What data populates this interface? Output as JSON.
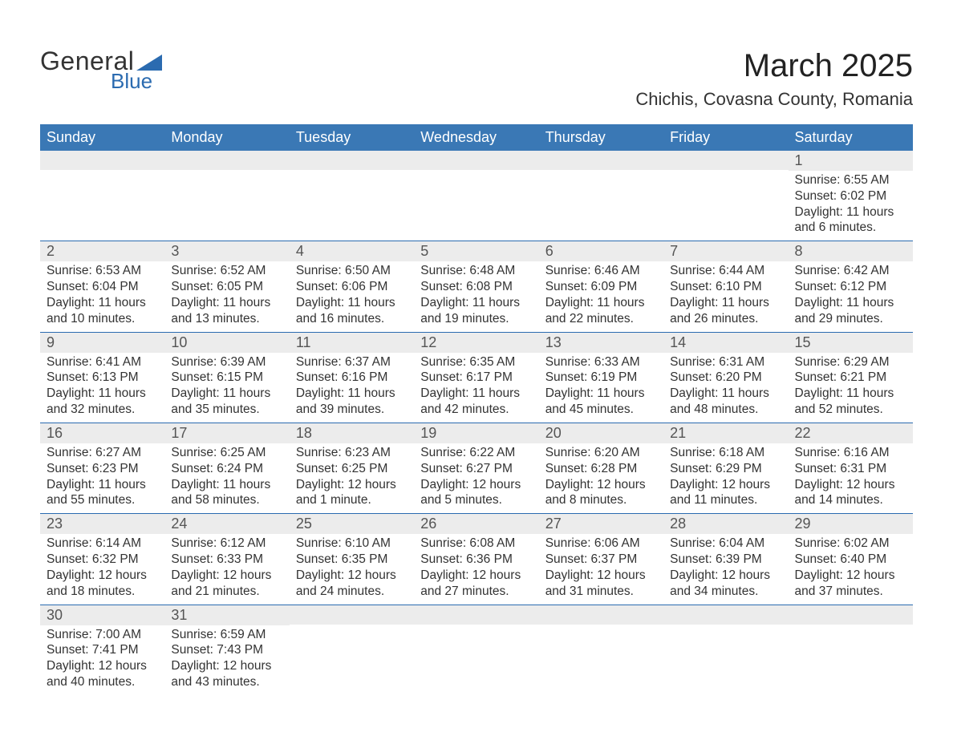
{
  "logo": {
    "text1": "General",
    "text2": "Blue",
    "shape_color": "#2b6bb0",
    "text1_color": "#333333",
    "text2_color": "#2b6bb0"
  },
  "title": {
    "month": "March 2025",
    "location": "Chichis, Covasna County, Romania"
  },
  "header_bg": "#3a78b5",
  "header_fg": "#ffffff",
  "row_sep_color": "#2b6bb0",
  "daynum_bg": "#ececec",
  "day_names": [
    "Sunday",
    "Monday",
    "Tuesday",
    "Wednesday",
    "Thursday",
    "Friday",
    "Saturday"
  ],
  "weeks": [
    [
      null,
      null,
      null,
      null,
      null,
      null,
      {
        "n": "1",
        "sr": "Sunrise: 6:55 AM",
        "ss": "Sunset: 6:02 PM",
        "d1": "Daylight: 11 hours",
        "d2": "and 6 minutes."
      }
    ],
    [
      {
        "n": "2",
        "sr": "Sunrise: 6:53 AM",
        "ss": "Sunset: 6:04 PM",
        "d1": "Daylight: 11 hours",
        "d2": "and 10 minutes."
      },
      {
        "n": "3",
        "sr": "Sunrise: 6:52 AM",
        "ss": "Sunset: 6:05 PM",
        "d1": "Daylight: 11 hours",
        "d2": "and 13 minutes."
      },
      {
        "n": "4",
        "sr": "Sunrise: 6:50 AM",
        "ss": "Sunset: 6:06 PM",
        "d1": "Daylight: 11 hours",
        "d2": "and 16 minutes."
      },
      {
        "n": "5",
        "sr": "Sunrise: 6:48 AM",
        "ss": "Sunset: 6:08 PM",
        "d1": "Daylight: 11 hours",
        "d2": "and 19 minutes."
      },
      {
        "n": "6",
        "sr": "Sunrise: 6:46 AM",
        "ss": "Sunset: 6:09 PM",
        "d1": "Daylight: 11 hours",
        "d2": "and 22 minutes."
      },
      {
        "n": "7",
        "sr": "Sunrise: 6:44 AM",
        "ss": "Sunset: 6:10 PM",
        "d1": "Daylight: 11 hours",
        "d2": "and 26 minutes."
      },
      {
        "n": "8",
        "sr": "Sunrise: 6:42 AM",
        "ss": "Sunset: 6:12 PM",
        "d1": "Daylight: 11 hours",
        "d2": "and 29 minutes."
      }
    ],
    [
      {
        "n": "9",
        "sr": "Sunrise: 6:41 AM",
        "ss": "Sunset: 6:13 PM",
        "d1": "Daylight: 11 hours",
        "d2": "and 32 minutes."
      },
      {
        "n": "10",
        "sr": "Sunrise: 6:39 AM",
        "ss": "Sunset: 6:15 PM",
        "d1": "Daylight: 11 hours",
        "d2": "and 35 minutes."
      },
      {
        "n": "11",
        "sr": "Sunrise: 6:37 AM",
        "ss": "Sunset: 6:16 PM",
        "d1": "Daylight: 11 hours",
        "d2": "and 39 minutes."
      },
      {
        "n": "12",
        "sr": "Sunrise: 6:35 AM",
        "ss": "Sunset: 6:17 PM",
        "d1": "Daylight: 11 hours",
        "d2": "and 42 minutes."
      },
      {
        "n": "13",
        "sr": "Sunrise: 6:33 AM",
        "ss": "Sunset: 6:19 PM",
        "d1": "Daylight: 11 hours",
        "d2": "and 45 minutes."
      },
      {
        "n": "14",
        "sr": "Sunrise: 6:31 AM",
        "ss": "Sunset: 6:20 PM",
        "d1": "Daylight: 11 hours",
        "d2": "and 48 minutes."
      },
      {
        "n": "15",
        "sr": "Sunrise: 6:29 AM",
        "ss": "Sunset: 6:21 PM",
        "d1": "Daylight: 11 hours",
        "d2": "and 52 minutes."
      }
    ],
    [
      {
        "n": "16",
        "sr": "Sunrise: 6:27 AM",
        "ss": "Sunset: 6:23 PM",
        "d1": "Daylight: 11 hours",
        "d2": "and 55 minutes."
      },
      {
        "n": "17",
        "sr": "Sunrise: 6:25 AM",
        "ss": "Sunset: 6:24 PM",
        "d1": "Daylight: 11 hours",
        "d2": "and 58 minutes."
      },
      {
        "n": "18",
        "sr": "Sunrise: 6:23 AM",
        "ss": "Sunset: 6:25 PM",
        "d1": "Daylight: 12 hours",
        "d2": "and 1 minute."
      },
      {
        "n": "19",
        "sr": "Sunrise: 6:22 AM",
        "ss": "Sunset: 6:27 PM",
        "d1": "Daylight: 12 hours",
        "d2": "and 5 minutes."
      },
      {
        "n": "20",
        "sr": "Sunrise: 6:20 AM",
        "ss": "Sunset: 6:28 PM",
        "d1": "Daylight: 12 hours",
        "d2": "and 8 minutes."
      },
      {
        "n": "21",
        "sr": "Sunrise: 6:18 AM",
        "ss": "Sunset: 6:29 PM",
        "d1": "Daylight: 12 hours",
        "d2": "and 11 minutes."
      },
      {
        "n": "22",
        "sr": "Sunrise: 6:16 AM",
        "ss": "Sunset: 6:31 PM",
        "d1": "Daylight: 12 hours",
        "d2": "and 14 minutes."
      }
    ],
    [
      {
        "n": "23",
        "sr": "Sunrise: 6:14 AM",
        "ss": "Sunset: 6:32 PM",
        "d1": "Daylight: 12 hours",
        "d2": "and 18 minutes."
      },
      {
        "n": "24",
        "sr": "Sunrise: 6:12 AM",
        "ss": "Sunset: 6:33 PM",
        "d1": "Daylight: 12 hours",
        "d2": "and 21 minutes."
      },
      {
        "n": "25",
        "sr": "Sunrise: 6:10 AM",
        "ss": "Sunset: 6:35 PM",
        "d1": "Daylight: 12 hours",
        "d2": "and 24 minutes."
      },
      {
        "n": "26",
        "sr": "Sunrise: 6:08 AM",
        "ss": "Sunset: 6:36 PM",
        "d1": "Daylight: 12 hours",
        "d2": "and 27 minutes."
      },
      {
        "n": "27",
        "sr": "Sunrise: 6:06 AM",
        "ss": "Sunset: 6:37 PM",
        "d1": "Daylight: 12 hours",
        "d2": "and 31 minutes."
      },
      {
        "n": "28",
        "sr": "Sunrise: 6:04 AM",
        "ss": "Sunset: 6:39 PM",
        "d1": "Daylight: 12 hours",
        "d2": "and 34 minutes."
      },
      {
        "n": "29",
        "sr": "Sunrise: 6:02 AM",
        "ss": "Sunset: 6:40 PM",
        "d1": "Daylight: 12 hours",
        "d2": "and 37 minutes."
      }
    ],
    [
      {
        "n": "30",
        "sr": "Sunrise: 7:00 AM",
        "ss": "Sunset: 7:41 PM",
        "d1": "Daylight: 12 hours",
        "d2": "and 40 minutes."
      },
      {
        "n": "31",
        "sr": "Sunrise: 6:59 AM",
        "ss": "Sunset: 7:43 PM",
        "d1": "Daylight: 12 hours",
        "d2": "and 43 minutes."
      },
      null,
      null,
      null,
      null,
      null
    ]
  ]
}
